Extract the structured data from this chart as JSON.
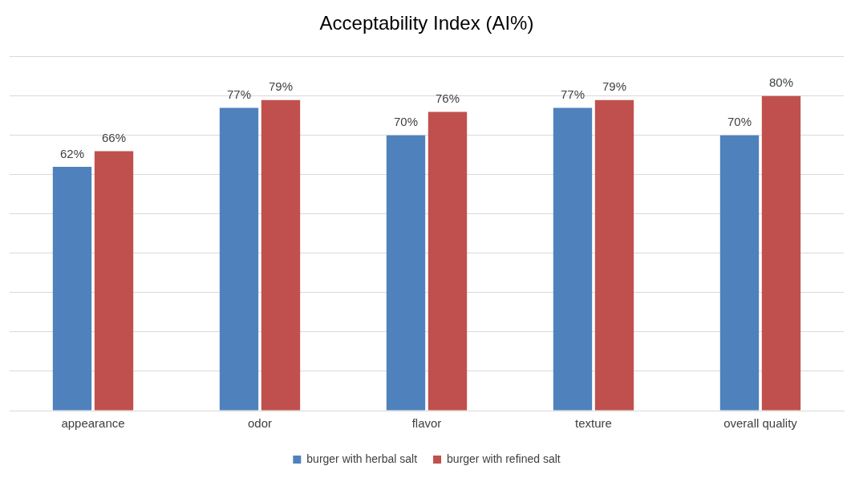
{
  "chart_data": {
    "type": "bar",
    "title": "Acceptability Index (AI%)",
    "categories": [
      "appearance",
      "odor",
      "flavor",
      "texture",
      "overall quality"
    ],
    "series": [
      {
        "name": "burger with herbal salt",
        "color": "#4f81bd",
        "values": [
          62,
          77,
          70,
          77,
          70
        ],
        "value_labels": [
          "62%",
          "77%",
          "70%",
          "77%",
          "70%"
        ]
      },
      {
        "name": "burger with refined salt",
        "color": "#c0504d",
        "values": [
          66,
          79,
          76,
          79,
          80
        ],
        "value_labels": [
          "66%",
          "79%",
          "76%",
          "79%",
          "80%"
        ]
      }
    ],
    "ylim": [
      0,
      90
    ],
    "yticks": [
      {
        "value": 0,
        "label": null
      },
      {
        "value": 10,
        "label": null
      },
      {
        "value": 20,
        "label": null
      },
      {
        "value": 30,
        "label": null
      },
      {
        "value": 40,
        "label": null
      },
      {
        "value": 50,
        "label": null
      },
      {
        "value": 60,
        "label": null
      },
      {
        "value": 70,
        "label": null
      },
      {
        "value": 80,
        "label": null
      },
      {
        "value": 90,
        "label": null
      }
    ],
    "tick_labels": "x",
    "grid": "y",
    "legend": "bottom"
  }
}
